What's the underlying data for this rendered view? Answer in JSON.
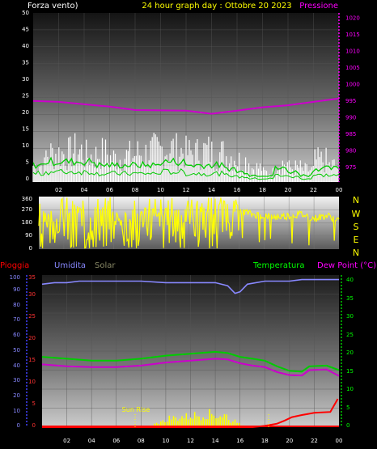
{
  "colors": {
    "wind_gust": "#ffffff",
    "wind_avg": "#00cc00",
    "pressure": "#cc00cc",
    "direction": "#ffff00",
    "rain": "#ff0000",
    "humidity": "#8888ff",
    "solar": "#ffff00",
    "temperature": "#00cc00",
    "dew_point": "#cc00cc",
    "header_left": "#ffffff",
    "header_center": "#ffff00",
    "header_right": "#ff00ff"
  },
  "chart_data": [
    {
      "id": "wind_pressure",
      "type": "bar",
      "title": "24 hour graph day : Ottobre 20 2023",
      "left_label": "Forza vento)",
      "right_label": "Pressione",
      "x_ticks": [
        "02",
        "04",
        "06",
        "08",
        "10",
        "12",
        "14",
        "16",
        "18",
        "20",
        "22",
        "00"
      ],
      "y_left_ticks": [
        "0",
        "5",
        "10",
        "15",
        "20",
        "25",
        "30",
        "35",
        "40",
        "45",
        "50"
      ],
      "y_left_range": [
        0,
        50
      ],
      "y_right_ticks": [
        "975",
        "980",
        "985",
        "990",
        "995",
        "1000",
        "1005",
        "1010",
        "1015",
        "1020"
      ],
      "y_right_range": [
        972.5,
        1022.5
      ],
      "gust_hourly": [
        7,
        12,
        12,
        13,
        11,
        12,
        10,
        11,
        12,
        13,
        14,
        13,
        12,
        13,
        12,
        11,
        9,
        6,
        4,
        8,
        6,
        5,
        9,
        7
      ],
      "avg_hourly": [
        5,
        6,
        6,
        6,
        6,
        5,
        5,
        5,
        5,
        5,
        6,
        6,
        5,
        5,
        5,
        4,
        3,
        2,
        2,
        4,
        3,
        2,
        4,
        4
      ],
      "pressure": [
        [
          0,
          996.5
        ],
        [
          2,
          996.2
        ],
        [
          4,
          995.5
        ],
        [
          6,
          994.8
        ],
        [
          8,
          993.8
        ],
        [
          10,
          993.7
        ],
        [
          12,
          993.6
        ],
        [
          14,
          992.7
        ],
        [
          16,
          993.6
        ],
        [
          18,
          994.6
        ],
        [
          20,
          995.2
        ],
        [
          22,
          996.2
        ],
        [
          24,
          997.2
        ]
      ]
    },
    {
      "id": "wind_direction",
      "type": "line",
      "y_ticks": [
        "0",
        "90",
        "180",
        "270",
        "360"
      ],
      "y_range": [
        0,
        360
      ],
      "compass": [
        "N",
        "W",
        "S",
        "E",
        "N"
      ],
      "direction": [
        [
          0,
          310
        ],
        [
          1,
          230
        ],
        [
          2,
          250
        ],
        [
          3,
          270
        ],
        [
          4,
          240
        ],
        [
          5,
          260
        ],
        [
          6,
          220
        ],
        [
          7,
          250
        ],
        [
          8,
          230
        ],
        [
          9,
          260
        ],
        [
          10,
          240
        ],
        [
          11,
          270
        ],
        [
          12,
          250
        ],
        [
          13,
          280
        ],
        [
          14,
          260
        ],
        [
          15,
          300
        ],
        [
          16,
          270
        ],
        [
          17,
          240
        ],
        [
          18,
          230
        ],
        [
          19,
          220
        ],
        [
          20,
          230
        ],
        [
          21,
          240
        ],
        [
          22,
          210
        ],
        [
          23,
          230
        ],
        [
          24,
          200
        ]
      ]
    },
    {
      "id": "temp_rain_humidity",
      "type": "line",
      "labels": {
        "rain": "Pioggia",
        "humidity": "Umidita",
        "solar": "Solar",
        "temperature": "Temperatura",
        "dew_point": "Dew Point (°C)"
      },
      "annotation": "Sun Rise",
      "y_left_ticks": [
        "0",
        "10",
        "20",
        "30",
        "40",
        "50",
        "60",
        "70",
        "80",
        "90",
        "100"
      ],
      "y_rain_ticks": [
        "0",
        "5",
        "10",
        "15",
        "20",
        "25",
        "30",
        "35"
      ],
      "y_right_ticks": [
        "0",
        "5",
        "10",
        "15",
        "20",
        "25",
        "30",
        "35",
        "40"
      ],
      "y_right_range": [
        0,
        40
      ],
      "x_ticks": [
        "02",
        "04",
        "06",
        "08",
        "10",
        "12",
        "14",
        "16",
        "18",
        "20",
        "22",
        "00"
      ],
      "humidity": [
        [
          0,
          94
        ],
        [
          1,
          95
        ],
        [
          2,
          95
        ],
        [
          3,
          96
        ],
        [
          4,
          96
        ],
        [
          6,
          96
        ],
        [
          8,
          96
        ],
        [
          10,
          95
        ],
        [
          12,
          95
        ],
        [
          14,
          95
        ],
        [
          15,
          93
        ],
        [
          15.6,
          88
        ],
        [
          16,
          89
        ],
        [
          16.6,
          94
        ],
        [
          18,
          96
        ],
        [
          19,
          96
        ],
        [
          20,
          96
        ],
        [
          21,
          97
        ],
        [
          22,
          97
        ],
        [
          24,
          97
        ]
      ],
      "temperature": [
        [
          0,
          18.5
        ],
        [
          2,
          18
        ],
        [
          4,
          17.5
        ],
        [
          6,
          17.5
        ],
        [
          8,
          18
        ],
        [
          10,
          18.8
        ],
        [
          12,
          19.3
        ],
        [
          14,
          19.8
        ],
        [
          15,
          19.5
        ],
        [
          16,
          18.5
        ],
        [
          17,
          18
        ],
        [
          18,
          17.5
        ],
        [
          19,
          16
        ],
        [
          20,
          14.8
        ],
        [
          21,
          14.6
        ],
        [
          21.6,
          16
        ],
        [
          23,
          16.2
        ],
        [
          24,
          15
        ]
      ],
      "dew_point": [
        [
          0,
          16.5
        ],
        [
          2,
          16
        ],
        [
          4,
          15.8
        ],
        [
          6,
          15.8
        ],
        [
          8,
          16.2
        ],
        [
          10,
          17
        ],
        [
          12,
          17.5
        ],
        [
          14,
          18
        ],
        [
          15,
          17.8
        ],
        [
          16,
          16.8
        ],
        [
          17,
          16.2
        ],
        [
          18,
          15.8
        ],
        [
          19,
          14.5
        ],
        [
          20,
          13.7
        ],
        [
          21,
          13.6
        ],
        [
          21.6,
          15
        ],
        [
          23,
          15.2
        ],
        [
          24,
          13.5
        ]
      ],
      "rain": [
        [
          0,
          0
        ],
        [
          17,
          0
        ],
        [
          18,
          0.3
        ],
        [
          19,
          0.8
        ],
        [
          19.6,
          1.5
        ],
        [
          20.2,
          2.3
        ],
        [
          21,
          2.8
        ],
        [
          22,
          3.3
        ],
        [
          23.3,
          3.5
        ],
        [
          23.9,
          6.5
        ]
      ],
      "solar_hourly": [
        0,
        0,
        0,
        0,
        0,
        0,
        0,
        0.2,
        1,
        4,
        7,
        8,
        9,
        10,
        9,
        5,
        1,
        0,
        0,
        0,
        0,
        0,
        0,
        0
      ]
    }
  ]
}
